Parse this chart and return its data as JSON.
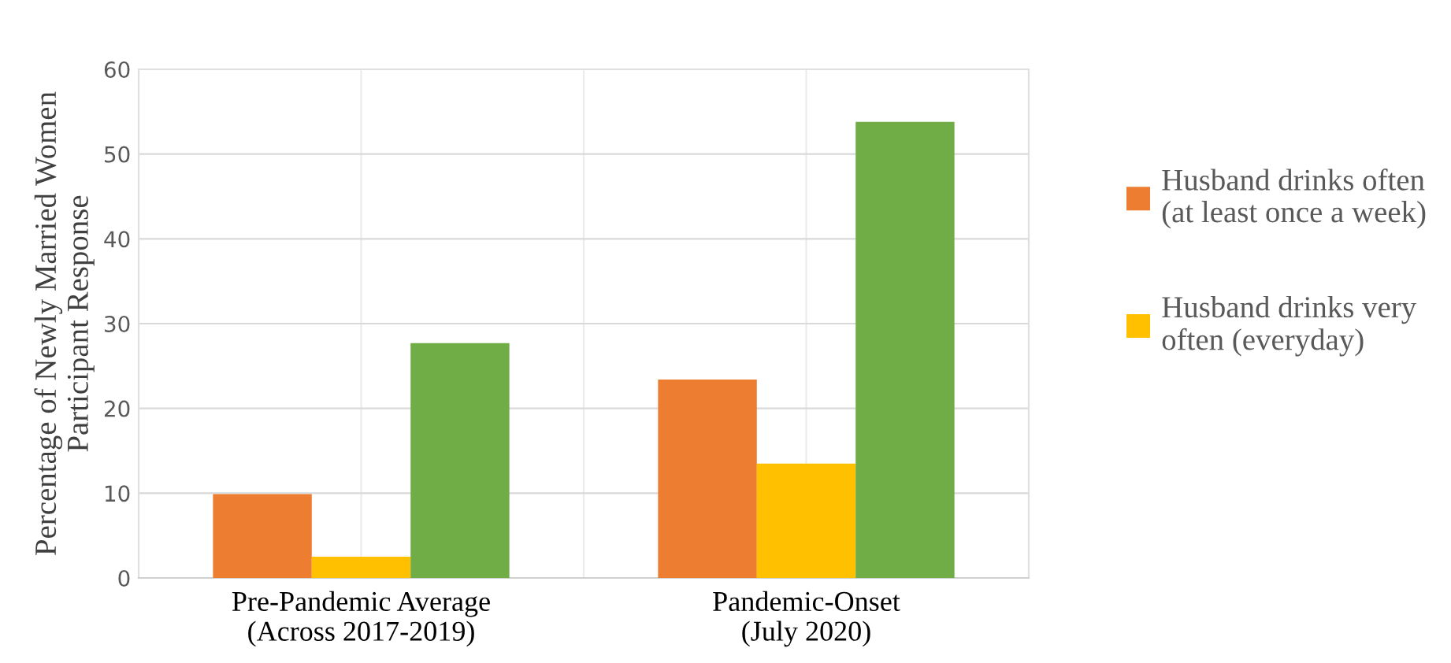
{
  "chart_data": {
    "type": "bar",
    "ylabel": "Percentage of Newly Married Women\nParticipant Response",
    "categories": [
      "Pre-Pandemic Average\n(Across 2017-2019)",
      "Pandemic-Onset\n(July 2020)"
    ],
    "series": [
      {
        "name": "Husband drinks often\n(at least once a week)",
        "color": "#ed7d31",
        "values": [
          9.9,
          23.4
        ]
      },
      {
        "name": "Husband drinks very\noften (everyday)",
        "color": "#ffc000",
        "values": [
          2.5,
          13.5
        ]
      },
      {
        "color": "#70ad47",
        "values": [
          27.7,
          53.8
        ]
      }
    ],
    "ylim": [
      0,
      60
    ],
    "yticks": [
      0,
      10,
      20,
      30,
      40,
      50,
      60
    ],
    "grid": true,
    "legend": "right"
  }
}
